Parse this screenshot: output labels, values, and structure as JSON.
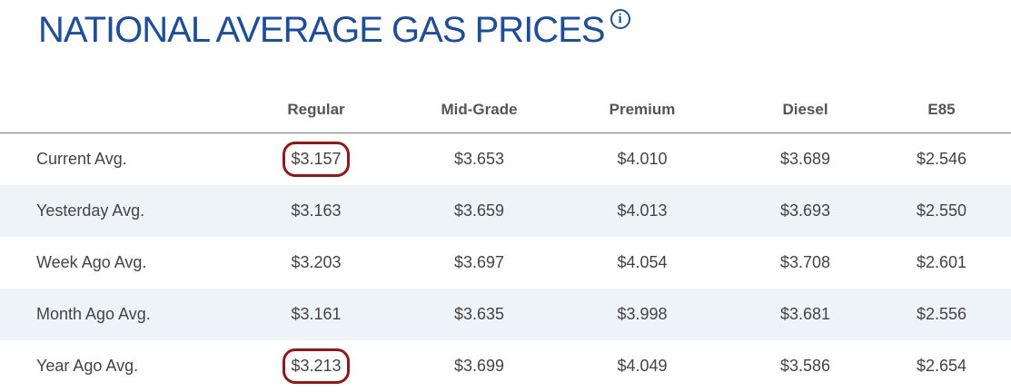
{
  "title": "NATIONAL AVERAGE GAS PRICES",
  "info_icon": "info-icon",
  "highlight_color": "#8b1a1a",
  "columns": [
    "",
    "Regular",
    "Mid-Grade",
    "Premium",
    "Diesel",
    "E85"
  ],
  "rows": [
    {
      "label": "Current Avg.",
      "values": [
        "$3.157",
        "$3.653",
        "$4.010",
        "$3.689",
        "$2.546"
      ],
      "circled": true
    },
    {
      "label": "Yesterday Avg.",
      "values": [
        "$3.163",
        "$3.659",
        "$4.013",
        "$3.693",
        "$2.550"
      ]
    },
    {
      "label": "Week Ago Avg.",
      "values": [
        "$3.203",
        "$3.697",
        "$4.054",
        "$3.708",
        "$2.601"
      ]
    },
    {
      "label": "Month Ago Avg.",
      "values": [
        "$3.161",
        "$3.635",
        "$3.998",
        "$3.681",
        "$2.556"
      ]
    },
    {
      "label": "Year Ago Avg.",
      "values": [
        "$3.213",
        "$3.699",
        "$4.049",
        "$3.586",
        "$2.654"
      ],
      "circled": true
    }
  ]
}
